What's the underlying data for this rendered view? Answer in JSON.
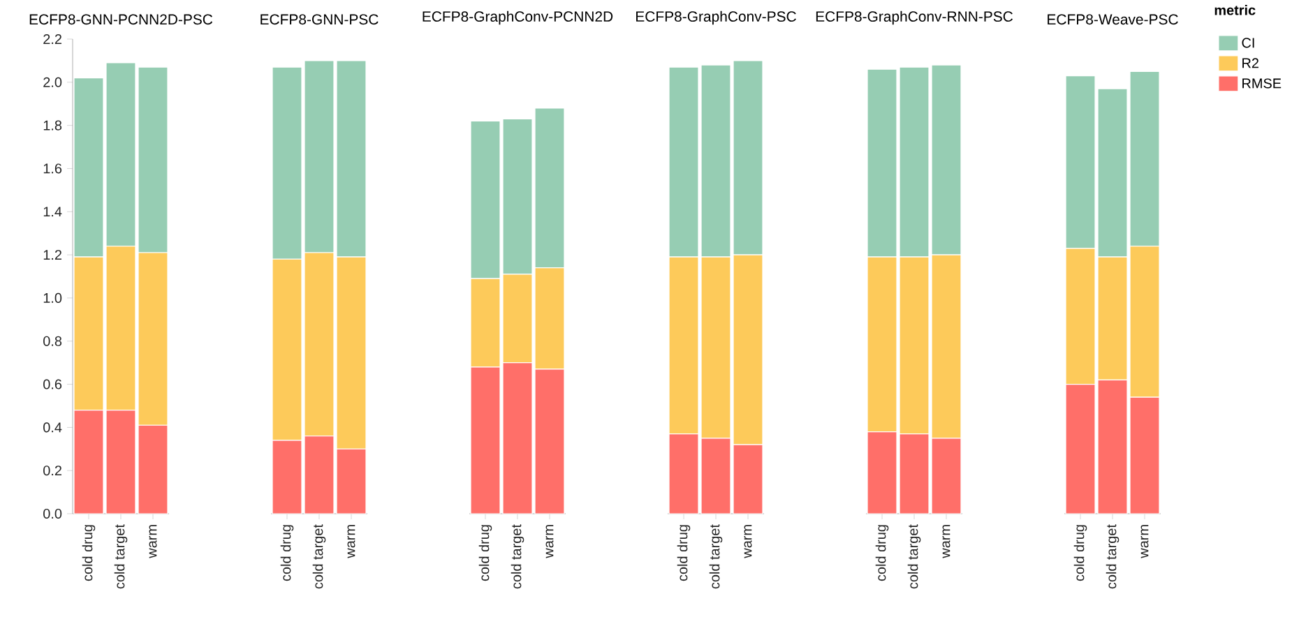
{
  "chart_data": [
    {
      "type": "bar",
      "stacked": true,
      "title": "ECFP8-GNN-PCNN2D-PSC",
      "categories": [
        "cold drug",
        "cold target",
        "warm"
      ],
      "ylim": [
        0,
        2.2
      ],
      "yticks": [
        {
          "value": 0,
          "label": "0.0"
        },
        0.2,
        0.4,
        0.6,
        0.8,
        {
          "value": 1,
          "label": "1.0"
        },
        1.2,
        1.4,
        1.6,
        1.8,
        {
          "value": 2,
          "label": "2.0"
        },
        2.2
      ],
      "series": [
        {
          "color": "#ff6f69",
          "values": [
            0.48,
            0.48,
            0.41
          ]
        },
        {
          "color": "#fdca5a",
          "values": [
            0.71,
            0.76,
            0.8
          ]
        },
        {
          "color": "#96cdb3",
          "values": [
            0.83,
            0.85,
            0.86
          ]
        }
      ]
    },
    {
      "type": "bar",
      "stacked": true,
      "title": "ECFP8-GNN-PSC",
      "categories": [
        "cold drug",
        "cold target",
        "warm"
      ],
      "ylim": [
        0,
        2.2
      ],
      "tick_labels": "x",
      "series": [
        {
          "color": "#ff6f69",
          "values": [
            0.34,
            0.36,
            0.3
          ]
        },
        {
          "color": "#fdca5a",
          "values": [
            0.84,
            0.85,
            0.89
          ]
        },
        {
          "color": "#96cdb3",
          "values": [
            0.89,
            0.89,
            0.91
          ]
        }
      ]
    },
    {
      "type": "bar",
      "stacked": true,
      "title": "ECFP8-GraphConv-PCNN2D",
      "categories": [
        "cold drug",
        "cold target",
        "warm"
      ],
      "ylim": [
        0,
        2.2
      ],
      "tick_labels": "x",
      "series": [
        {
          "color": "#ff6f69",
          "values": [
            0.68,
            0.7,
            0.67
          ]
        },
        {
          "color": "#fdca5a",
          "values": [
            0.41,
            0.41,
            0.47
          ]
        },
        {
          "color": "#96cdb3",
          "values": [
            0.73,
            0.72,
            0.74
          ]
        }
      ]
    },
    {
      "type": "bar",
      "stacked": true,
      "title": "ECFP8-GraphConv-PSC",
      "categories": [
        "cold drug",
        "cold target",
        "warm"
      ],
      "ylim": [
        0,
        2.2
      ],
      "tick_labels": "x",
      "series": [
        {
          "color": "#ff6f69",
          "values": [
            0.37,
            0.35,
            0.32
          ]
        },
        {
          "color": "#fdca5a",
          "values": [
            0.82,
            0.84,
            0.88
          ]
        },
        {
          "color": "#96cdb3",
          "values": [
            0.88,
            0.89,
            0.9
          ]
        }
      ]
    },
    {
      "type": "bar",
      "stacked": true,
      "title": "ECFP8-GraphConv-RNN-PSC",
      "categories": [
        "cold drug",
        "cold target",
        "warm"
      ],
      "ylim": [
        0,
        2.2
      ],
      "tick_labels": "x",
      "series": [
        {
          "color": "#ff6f69",
          "values": [
            0.38,
            0.37,
            0.35
          ]
        },
        {
          "color": "#fdca5a",
          "values": [
            0.81,
            0.82,
            0.85
          ]
        },
        {
          "color": "#96cdb3",
          "values": [
            0.87,
            0.88,
            0.88
          ]
        }
      ]
    },
    {
      "type": "bar",
      "stacked": true,
      "title": "ECFP8-Weave-PSC",
      "categories": [
        "cold drug",
        "cold target",
        "warm"
      ],
      "ylim": [
        0,
        2.2
      ],
      "tick_labels": "x",
      "legend": "top right",
      "legend_title": "metric",
      "series": [
        {
          "name": "RMSE",
          "color": "#ff6f69",
          "values": [
            0.6,
            0.62,
            0.54
          ]
        },
        {
          "name": "R2",
          "color": "#fdca5a",
          "values": [
            0.63,
            0.57,
            0.7
          ]
        },
        {
          "name": "CI",
          "color": "#96cdb3",
          "values": [
            0.8,
            0.78,
            0.81
          ]
        }
      ]
    }
  ]
}
